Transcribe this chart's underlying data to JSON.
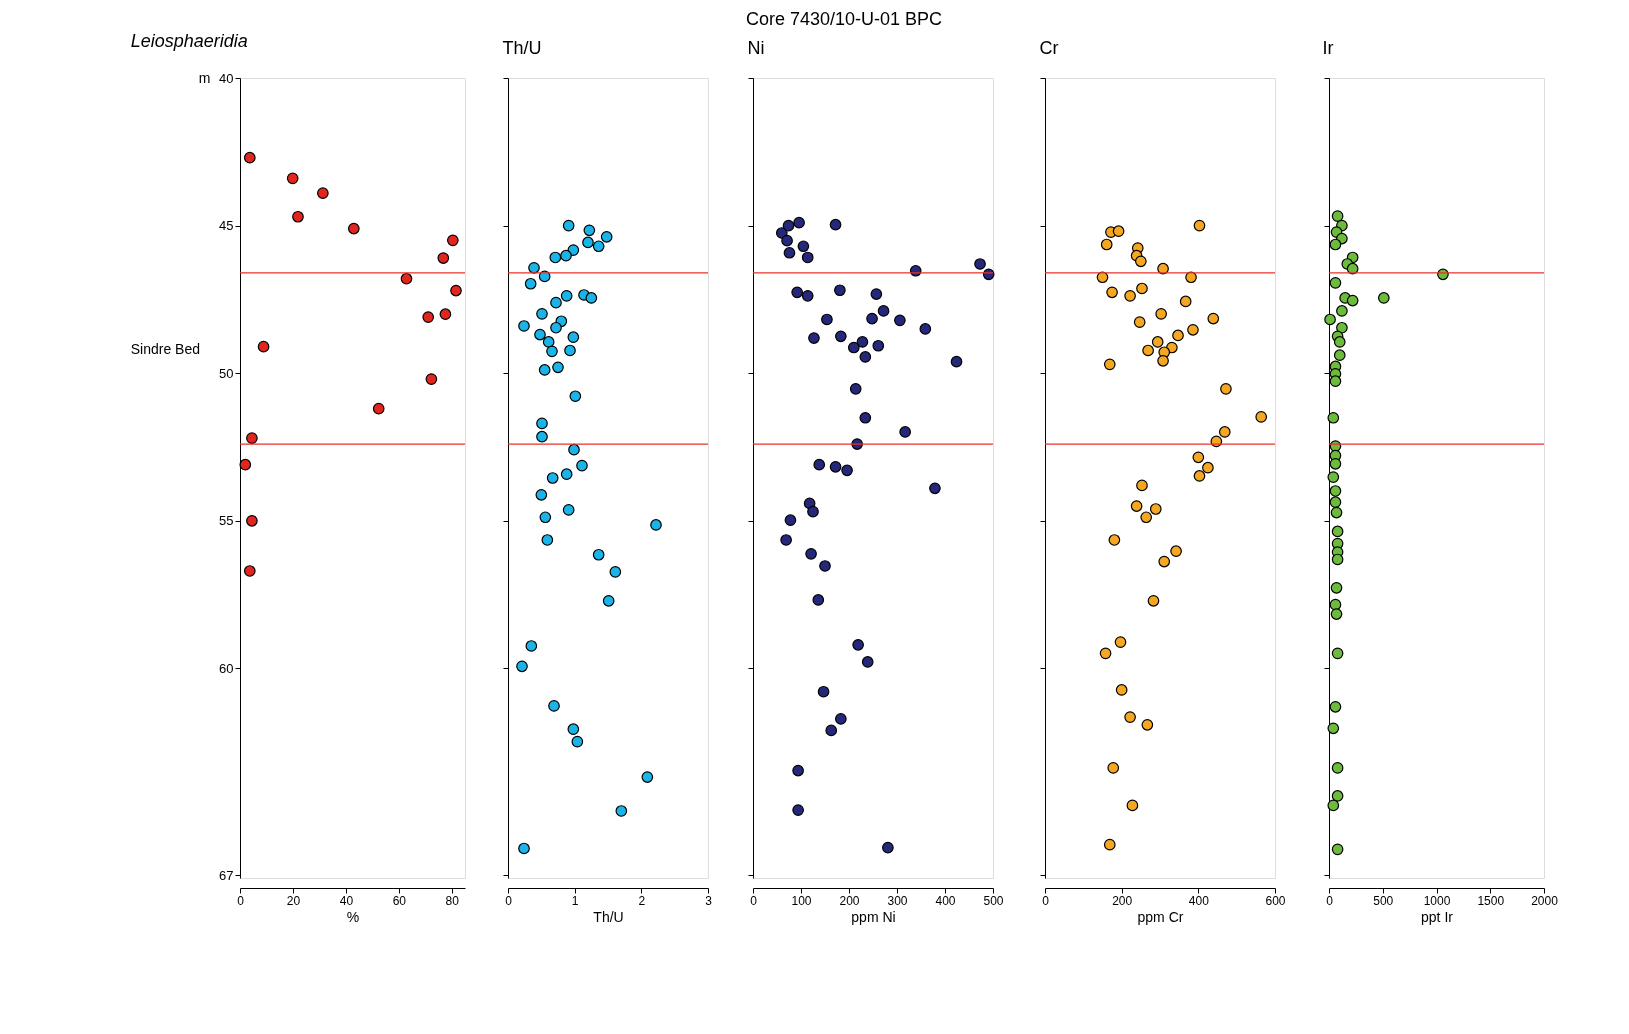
{
  "chart_data": [
    {
      "type": "scatter",
      "title": "Leiosphaeridia",
      "xlabel": "%",
      "ylabel": "m",
      "xlim": [
        0,
        85
      ],
      "xticks": [
        0,
        20,
        40,
        60,
        80
      ],
      "ylim": [
        67.1,
        40
      ],
      "yticks": [
        40,
        45,
        50,
        55,
        60,
        67
      ],
      "marker": "circle",
      "grid": false,
      "annotations": [
        "Core    7430/10-U-01   BPC",
        "Sindre Bed"
      ],
      "ref_lines": [
        {
          "axis": "y",
          "value": 46.6,
          "color": "#e8322b"
        },
        {
          "axis": "y",
          "value": 52.4,
          "color": "#e8322b"
        }
      ],
      "series": [
        {
          "color": "#e0261e",
          "x": [
            3.7,
            19.9,
            31.3,
            21.9,
            43.0,
            80.4,
            76.8,
            62.9,
            81.6,
            77.6,
            71.1,
            8.9,
            72.3,
            52.4,
            4.5,
            2.0,
            4.5,
            3.7
          ],
          "values": [
            42.7,
            43.4,
            43.9,
            44.7,
            45.1,
            45.5,
            46.1,
            46.8,
            47.2,
            48.0,
            48.1,
            49.1,
            50.2,
            51.2,
            52.2,
            53.1,
            55.0,
            56.7
          ]
        }
      ]
    },
    {
      "type": "scatter",
      "title": "Th/U",
      "xlabel": "Th/U",
      "xlim": [
        0,
        3
      ],
      "xticks": [
        0,
        1,
        2,
        3
      ],
      "ylim": [
        67.1,
        40
      ],
      "yticks": [
        40,
        45,
        50,
        55,
        60,
        67
      ],
      "tick_labels": "x",
      "marker": "circle",
      "grid": false,
      "ref_lines": [
        {
          "axis": "y",
          "value": 46.6,
          "color": "#e8322b"
        },
        {
          "axis": "y",
          "value": 52.4,
          "color": "#e8322b"
        }
      ],
      "series": [
        {
          "color": "#1ab4e8",
          "x": [
            0.91,
            1.22,
            1.48,
            1.2,
            1.36,
            0.98,
            0.87,
            0.71,
            0.39,
            0.55,
            0.34,
            0.88,
            1.14,
            1.25,
            0.72,
            0.51,
            0.8,
            0.24,
            0.72,
            0.98,
            0.48,
            0.61,
            0.66,
            0.93,
            0.75,
            0.55,
            1.01,
            0.51,
            0.51,
            0.99,
            1.11,
            0.88,
            0.67,
            0.5,
            0.91,
            0.56,
            2.22,
            0.59,
            1.36,
            1.61,
            1.51,
            0.35,
            0.21,
            0.69,
            0.98,
            1.04,
            2.09,
            1.7,
            0.24
          ],
          "values": [
            45.0,
            45.16,
            45.38,
            45.57,
            45.7,
            45.83,
            46.02,
            46.08,
            46.43,
            46.72,
            46.97,
            47.38,
            47.35,
            47.45,
            47.61,
            47.99,
            48.24,
            48.4,
            48.46,
            48.78,
            48.69,
            48.94,
            49.26,
            49.23,
            49.8,
            49.89,
            50.78,
            51.7,
            52.15,
            52.59,
            53.13,
            53.42,
            53.55,
            54.12,
            54.63,
            54.88,
            55.14,
            55.65,
            56.15,
            56.73,
            57.71,
            59.24,
            59.93,
            61.27,
            62.06,
            62.48,
            63.68,
            64.83,
            66.1
          ]
        }
      ]
    },
    {
      "type": "scatter",
      "title": "Ni",
      "xlabel": "ppm Ni",
      "xlim": [
        0,
        500
      ],
      "xticks": [
        0,
        100,
        200,
        300,
        400,
        500
      ],
      "ylim": [
        67.1,
        40
      ],
      "yticks": [
        40,
        45,
        50,
        55,
        60,
        67
      ],
      "tick_labels": "x",
      "marker": "circle",
      "grid": false,
      "ref_lines": [
        {
          "axis": "y",
          "value": 46.6,
          "color": "#e8322b"
        },
        {
          "axis": "y",
          "value": 52.4,
          "color": "#e8322b"
        }
      ],
      "series": [
        {
          "color": "#25277a",
          "x": [
            60,
            74,
            96,
            172,
            71,
            105,
            76,
            114,
            473,
            491,
            339,
            92,
            114,
            181,
            257,
            272,
            248,
            306,
            154,
            359,
            127,
            183,
            228,
            261,
            210,
            234,
            424,
            214,
            234,
            317,
            217,
            138,
            172,
            196,
            379,
            118,
            125,
            78,
            69,
            121,
            150,
            136,
            219,
            239,
            147,
            183,
            163,
            94,
            94,
            281
          ],
          "values": [
            45.25,
            45.0,
            44.9,
            44.97,
            45.51,
            45.7,
            45.92,
            46.08,
            46.3,
            46.65,
            46.53,
            47.26,
            47.38,
            47.19,
            47.32,
            47.89,
            48.15,
            48.21,
            48.18,
            48.5,
            48.81,
            48.75,
            48.94,
            49.07,
            49.13,
            49.45,
            49.61,
            50.53,
            51.51,
            51.99,
            52.4,
            53.1,
            53.17,
            53.29,
            53.9,
            54.41,
            54.69,
            54.98,
            55.65,
            56.12,
            56.53,
            57.68,
            59.2,
            59.78,
            60.79,
            61.71,
            62.1,
            63.46,
            64.8,
            66.07
          ]
        }
      ]
    },
    {
      "type": "scatter",
      "title": "Cr",
      "xlabel": "ppm Cr",
      "xlim": [
        0,
        600
      ],
      "xticks": [
        0,
        200,
        400,
        600
      ],
      "ylim": [
        67.1,
        40
      ],
      "yticks": [
        40,
        45,
        50,
        55,
        60,
        67
      ],
      "tick_labels": "x",
      "marker": "circle",
      "grid": false,
      "ref_lines": [
        {
          "axis": "y",
          "value": 46.6,
          "color": "#e8322b"
        },
        {
          "axis": "y",
          "value": 52.4,
          "color": "#e8322b"
        }
      ],
      "series": [
        {
          "color": "#f5a722",
          "x": [
            172,
            192,
            403,
            161,
            242,
            239,
            250,
            308,
            150,
            381,
            253,
            175,
            222,
            367,
            303,
            247,
            439,
            386,
            347,
            294,
            331,
            269,
            311,
            308,
            169,
            472,
            564,
            469,
            447,
            400,
            425,
            403,
            253,
            239,
            289,
            264,
            181,
            342,
            311,
            283,
            197,
            158,
            200,
            222,
            267,
            178,
            228,
            169
          ],
          "values": [
            45.22,
            45.19,
            45.0,
            45.64,
            45.76,
            46.02,
            46.21,
            46.46,
            46.75,
            46.75,
            47.13,
            47.26,
            47.38,
            47.57,
            47.99,
            48.27,
            48.15,
            48.53,
            48.72,
            48.94,
            49.13,
            49.23,
            49.29,
            49.58,
            49.7,
            50.53,
            51.48,
            51.99,
            52.31,
            52.85,
            53.2,
            53.48,
            53.8,
            54.5,
            54.6,
            54.88,
            55.65,
            56.03,
            56.38,
            57.71,
            59.11,
            59.49,
            60.73,
            61.65,
            61.91,
            63.37,
            64.64,
            65.97
          ]
        }
      ]
    },
    {
      "type": "scatter",
      "title": "Ir",
      "xlabel": "ppt  Ir",
      "xlim": [
        0,
        2000
      ],
      "xticks": [
        0,
        500,
        1000,
        1500,
        2000
      ],
      "ylim": [
        67.1,
        40
      ],
      "yticks": [
        40,
        45,
        50,
        55,
        60,
        67
      ],
      "tick_labels": "x",
      "marker": "circle",
      "grid": false,
      "ref_lines": [
        {
          "axis": "y",
          "value": 46.6,
          "color": "#e8322b"
        },
        {
          "axis": "y",
          "value": 52.4,
          "color": "#e8322b"
        }
      ],
      "series": [
        {
          "color": "#6cbb3c",
          "x": [
            80,
            120,
            70,
            120,
            60,
            220,
            170,
            220,
            60,
            1060,
            150,
            220,
            510,
            120,
            10,
            120,
            80,
            100,
            100,
            60,
            60,
            60,
            40,
            60,
            60,
            60,
            40,
            60,
            60,
            70,
            80,
            80,
            80,
            80,
            70,
            60,
            70,
            80,
            60,
            40,
            80,
            80,
            40,
            80
          ],
          "values": [
            44.68,
            45.0,
            45.22,
            45.44,
            45.64,
            46.08,
            46.3,
            46.46,
            46.94,
            46.65,
            47.45,
            47.54,
            47.45,
            47.89,
            48.18,
            48.46,
            48.75,
            48.94,
            49.39,
            49.77,
            50.02,
            50.27,
            51.51,
            52.47,
            52.79,
            53.07,
            53.52,
            53.99,
            54.37,
            54.72,
            55.36,
            55.77,
            56.06,
            56.31,
            57.27,
            57.84,
            58.16,
            59.49,
            61.3,
            62.03,
            63.37,
            64.32,
            64.64,
            66.13
          ]
        }
      ]
    }
  ]
}
